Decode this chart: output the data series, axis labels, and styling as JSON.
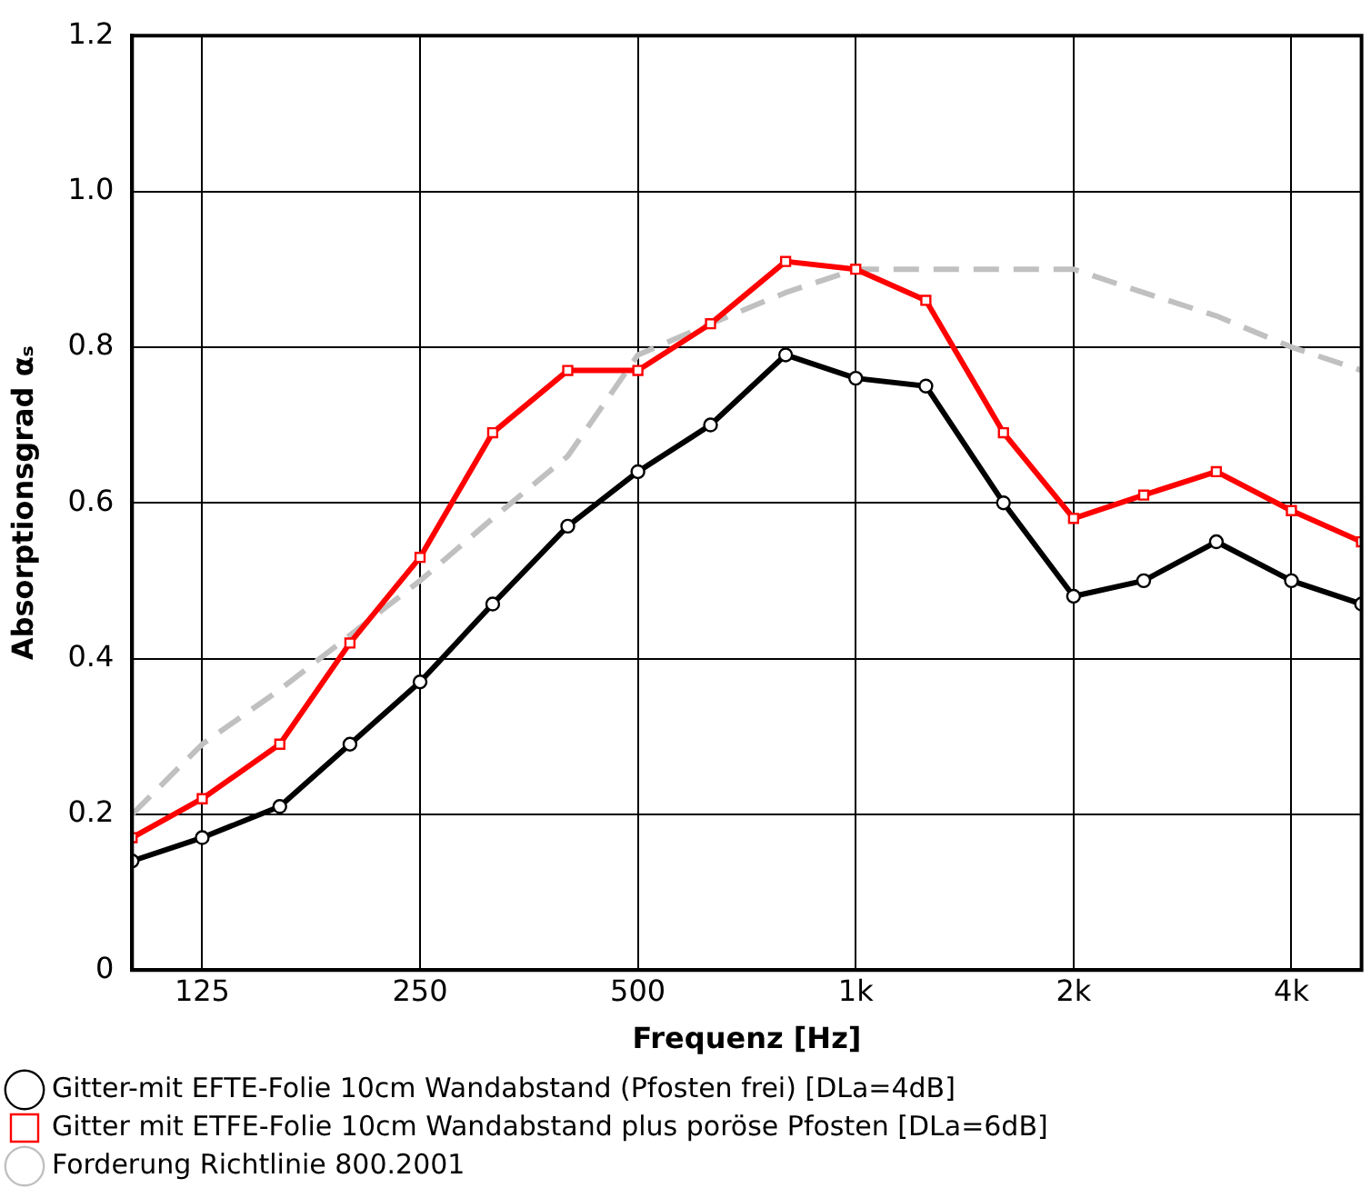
{
  "chart_data": {
    "type": "line",
    "xlabel": "Frequenz [Hz]",
    "ylabel": "Absorptionsgrad αₛ",
    "x": [
      100,
      125,
      160,
      200,
      250,
      315,
      400,
      500,
      630,
      800,
      1000,
      1250,
      1600,
      2000,
      2500,
      3150,
      4000,
      5000
    ],
    "series": [
      {
        "name": "Gitter-mit EFTE-Folie 10cm Wandabstand (Pfosten frei) [DLa=4dB]",
        "color": "#000000",
        "marker": "circle",
        "line_style": "solid",
        "values": [
          0.14,
          0.17,
          0.21,
          0.29,
          0.37,
          0.47,
          0.57,
          0.64,
          0.7,
          0.79,
          0.76,
          0.75,
          0.6,
          0.48,
          0.5,
          0.55,
          0.5,
          0.47
        ]
      },
      {
        "name": "Gitter mit ETFE-Folie 10cm Wandabstand plus poröse Pfosten [DLa=6dB]",
        "color": "#ff0000",
        "marker": "square",
        "line_style": "solid",
        "values": [
          0.17,
          0.22,
          0.29,
          0.42,
          0.53,
          0.69,
          0.77,
          0.77,
          0.83,
          0.91,
          0.9,
          0.86,
          0.69,
          0.58,
          0.61,
          0.64,
          0.59,
          0.55
        ]
      },
      {
        "name": "Forderung Richtlinie 800.2001",
        "color": "#c0c0c0",
        "marker": "none",
        "line_style": "dashed",
        "values": [
          0.2,
          0.29,
          0.36,
          0.43,
          0.5,
          0.58,
          0.66,
          0.79,
          0.83,
          0.87,
          0.9,
          0.9,
          0.9,
          0.9,
          0.87,
          0.84,
          0.8,
          0.77
        ]
      }
    ],
    "log": "x",
    "xlim": [
      100,
      5000
    ],
    "xticks": [
      125,
      250,
      500,
      {
        "value": 1000,
        "label": "1k"
      },
      {
        "value": 2000,
        "label": "2k"
      },
      {
        "value": 4000,
        "label": "4k"
      }
    ],
    "ylim": [
      0,
      1.2
    ],
    "yticks": [
      0,
      0.2,
      0.4,
      0.6,
      0.8,
      {
        "value": 1,
        "label": "1.0"
      },
      1.2
    ],
    "grid": true,
    "legend": "bottom"
  }
}
